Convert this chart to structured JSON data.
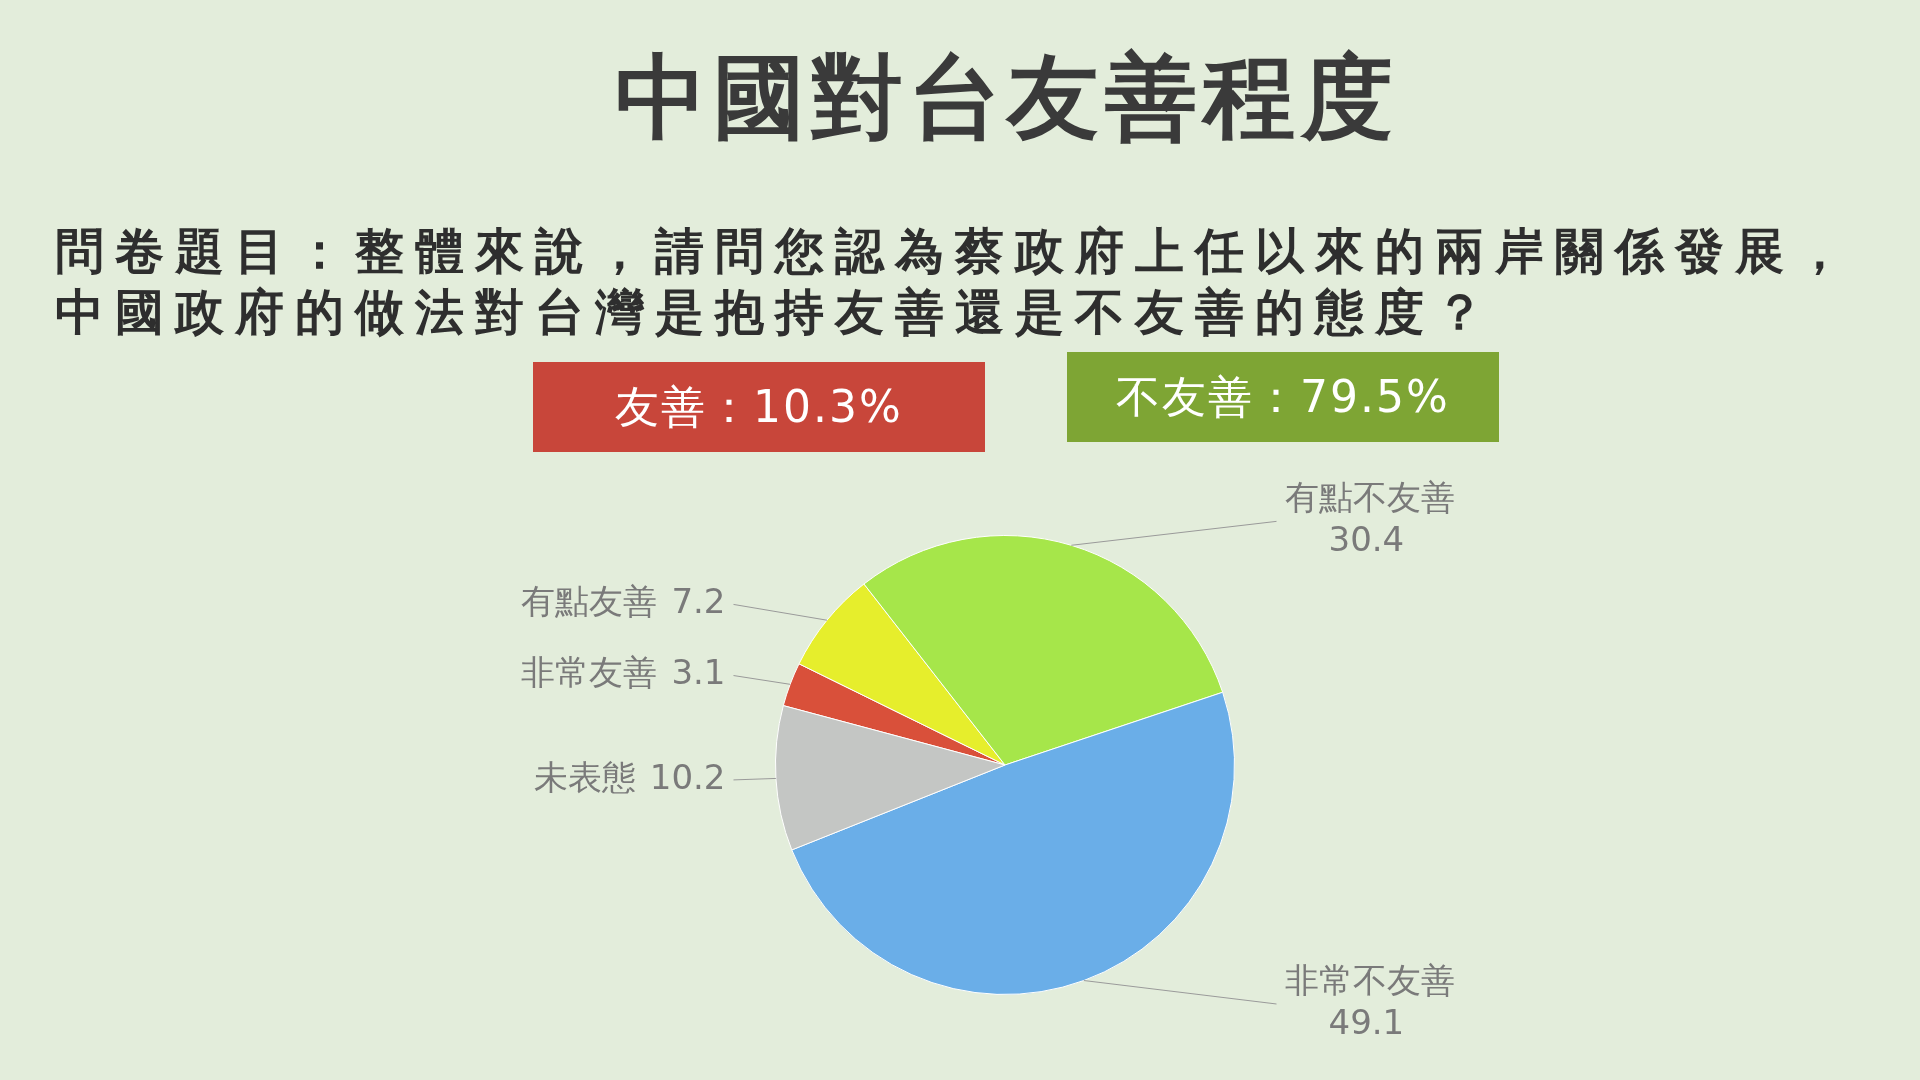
{
  "chart_data": {
    "type": "pie",
    "title": "中國對台友善程度",
    "subtitle": "問卷題目：整體來說，請問您認為蔡政府上任以來的兩岸關係發展，中國政府的做法對台灣是抱持友善還是不友善的態度？",
    "categories": [
      "非常友善",
      "有點友善",
      "有點不友善",
      "非常不友善",
      "未表態"
    ],
    "values": [
      3.1,
      7.2,
      30.4,
      49.1,
      10.2
    ],
    "colors": [
      "#d9503a",
      "#e6ee2c",
      "#a6e64a",
      "#6aaee8",
      "#c4c6c4"
    ],
    "data_labels": true,
    "annotations": [
      "友善：10.3%",
      "不友善：79.5%"
    ]
  }
}
